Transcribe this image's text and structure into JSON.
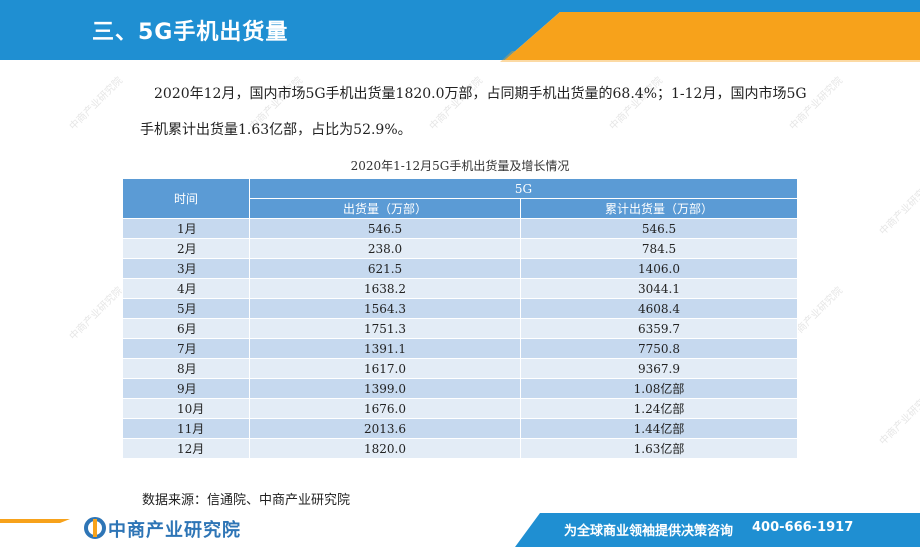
{
  "header": {
    "title": "三、5G手机出货量"
  },
  "intro": {
    "text": "2020年12月，国内市场5G手机出货量1820.0万部，占同期手机出货量的68.4%；1-12月，国内市场5G手机累计出货量1.63亿部，占比为52.9%。"
  },
  "table": {
    "title": "2020年1-12月5G手机出货量及增长情况",
    "col_time": "时间",
    "col_group": "5G",
    "col_shipment": "出货量（万部）",
    "col_cumulative": "累计出货量（万部）",
    "rows": [
      {
        "month": "1月",
        "shipment": "546.5",
        "cumulative": "546.5"
      },
      {
        "month": "2月",
        "shipment": "238.0",
        "cumulative": "784.5"
      },
      {
        "month": "3月",
        "shipment": "621.5",
        "cumulative": "1406.0"
      },
      {
        "month": "4月",
        "shipment": "1638.2",
        "cumulative": "3044.1"
      },
      {
        "month": "5月",
        "shipment": "1564.3",
        "cumulative": "4608.4"
      },
      {
        "month": "6月",
        "shipment": "1751.3",
        "cumulative": "6359.7"
      },
      {
        "month": "7月",
        "shipment": "1391.1",
        "cumulative": "7750.8"
      },
      {
        "month": "8月",
        "shipment": "1617.0",
        "cumulative": "9367.9"
      },
      {
        "month": "9月",
        "shipment": "1399.0",
        "cumulative": "1.08亿部"
      },
      {
        "month": "10月",
        "shipment": "1676.0",
        "cumulative": "1.24亿部"
      },
      {
        "month": "11月",
        "shipment": "2013.6",
        "cumulative": "1.44亿部"
      },
      {
        "month": "12月",
        "shipment": "1820.0",
        "cumulative": "1.63亿部"
      }
    ]
  },
  "source": "数据来源：信通院、中商产业研究院",
  "watermark": "中商产业研究院",
  "footer": {
    "logo_text": "中商产业研究院",
    "slogan": "为全球商业领袖提供决策咨询",
    "hotline": "400-666-1917"
  },
  "colors": {
    "header_blue": "#1f8fd2",
    "accent_orange": "#f7a21b",
    "table_header": "#5b9bd5",
    "row_dark": "#c6d9ef",
    "row_light": "#e3ecf6"
  }
}
